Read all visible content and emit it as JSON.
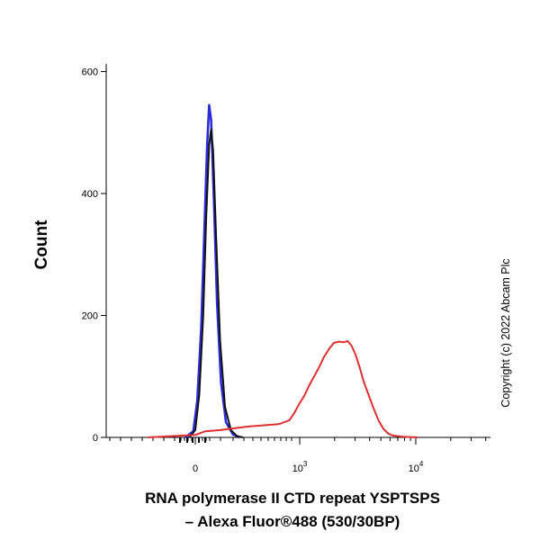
{
  "chart_data": {
    "type": "line",
    "xscale": "biexponential",
    "ylabel": "Count",
    "xlabel_lines": [
      "RNA polymerase II CTD repeat YSPTSPS",
      "– Alexa Fluor®488 (530/30BP)"
    ],
    "ylim": [
      0,
      620
    ],
    "y_ticks": [
      0,
      200,
      400,
      600
    ],
    "x_tick_labels": [
      {
        "base": "0",
        "exp": ""
      },
      {
        "base": "10",
        "exp": "3"
      },
      {
        "base": "10",
        "exp": "4"
      }
    ],
    "grid": false,
    "legend": "none",
    "copyright": "Copyright (c) 2022 Abcam Plc",
    "series": [
      {
        "color": "#2b2bd9",
        "points": [
          [
            -10,
            0
          ],
          [
            -2,
            10
          ],
          [
            2,
            60
          ],
          [
            6,
            180
          ],
          [
            9,
            330
          ],
          [
            12,
            480
          ],
          [
            14,
            545
          ],
          [
            16,
            520
          ],
          [
            19,
            380
          ],
          [
            22,
            220
          ],
          [
            26,
            90
          ],
          [
            31,
            25
          ],
          [
            38,
            5
          ],
          [
            45,
            0
          ]
        ]
      },
      {
        "color": "#111111",
        "points": [
          [
            -6,
            0
          ],
          [
            0,
            12
          ],
          [
            4,
            70
          ],
          [
            8,
            200
          ],
          [
            11,
            360
          ],
          [
            14,
            480
          ],
          [
            16,
            505
          ],
          [
            18,
            470
          ],
          [
            21,
            330
          ],
          [
            25,
            160
          ],
          [
            30,
            50
          ],
          [
            36,
            12
          ],
          [
            42,
            2
          ],
          [
            48,
            0
          ]
        ]
      },
      {
        "color": "#e03030",
        "points": [
          [
            -48,
            0
          ],
          [
            0,
            4
          ],
          [
            10,
            10
          ],
          [
            25,
            12
          ],
          [
            40,
            15
          ],
          [
            55,
            18
          ],
          [
            70,
            20
          ],
          [
            85,
            22
          ],
          [
            95,
            28
          ],
          [
            100,
            40
          ],
          [
            105,
            55
          ],
          [
            110,
            68
          ],
          [
            115,
            85
          ],
          [
            120,
            100
          ],
          [
            125,
            115
          ],
          [
            130,
            132
          ],
          [
            135,
            145
          ],
          [
            140,
            155
          ],
          [
            145,
            157
          ],
          [
            150,
            156
          ],
          [
            154,
            158
          ],
          [
            158,
            150
          ],
          [
            162,
            135
          ],
          [
            166,
            115
          ],
          [
            170,
            92
          ],
          [
            175,
            70
          ],
          [
            180,
            48
          ],
          [
            185,
            28
          ],
          [
            190,
            14
          ],
          [
            195,
            6
          ],
          [
            200,
            3
          ],
          [
            210,
            1
          ],
          [
            225,
            0
          ]
        ]
      }
    ]
  }
}
